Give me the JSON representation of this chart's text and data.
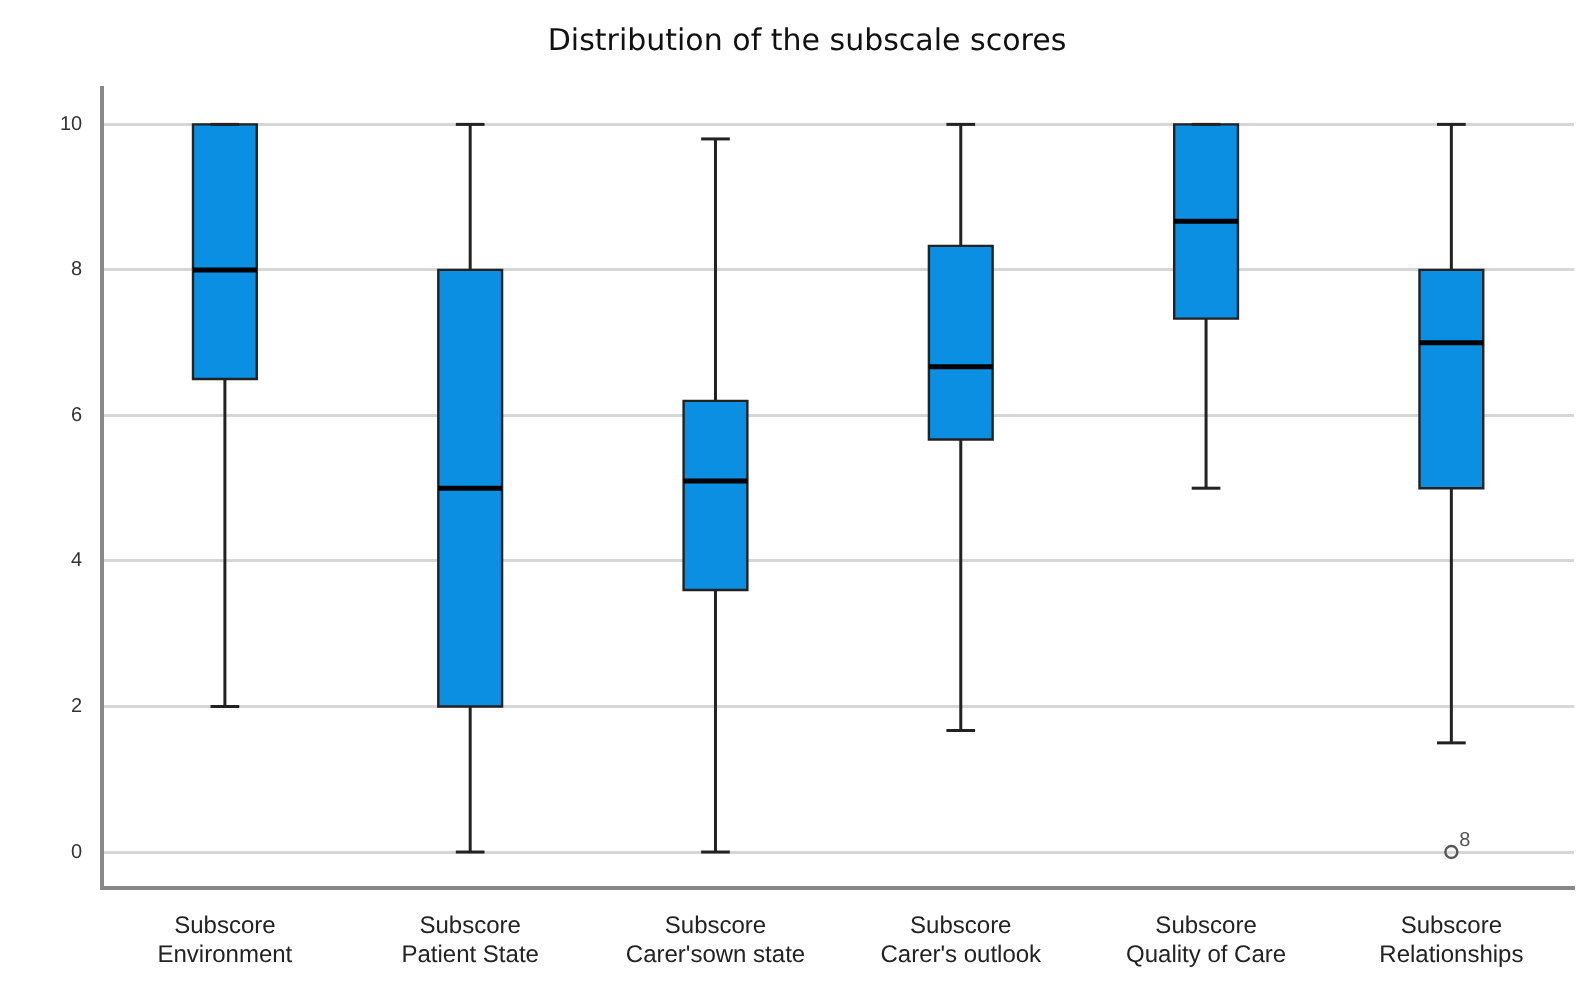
{
  "chart_data": {
    "type": "box",
    "title": "Distribution of the subscale scores",
    "categories": [
      "Subscore Environment",
      "Subscore Patient State",
      "Subscore Carer'sown state",
      "Subscore Carer's outlook",
      "Subscore Quality of Care",
      "Subscore Relationships"
    ],
    "color": "#0b8fe3",
    "boxes": [
      {
        "low": 2,
        "q1": 6.5,
        "median": 8,
        "q3": 10,
        "high": 10
      },
      {
        "low": 0,
        "q1": 2,
        "median": 5,
        "q3": 8,
        "high": 10
      },
      {
        "low": 0,
        "q1": 3.6,
        "median": 5.1,
        "q3": 6.2,
        "high": 9.8
      },
      {
        "low": 1.67,
        "q1": 5.67,
        "median": 6.67,
        "q3": 8.33,
        "high": 10
      },
      {
        "low": 5,
        "q1": 7.33,
        "median": 8.67,
        "q3": 10,
        "high": 10
      },
      {
        "low": 1.5,
        "q1": 5,
        "median": 7,
        "q3": 8,
        "high": 10,
        "outliers": [
          0
        ]
      }
    ],
    "annotations": [
      "8"
    ],
    "ylim": [
      -0.5,
      10.5
    ],
    "yticks": [
      0,
      2,
      4,
      6,
      8,
      10
    ],
    "grid": "y",
    "legend": false
  }
}
